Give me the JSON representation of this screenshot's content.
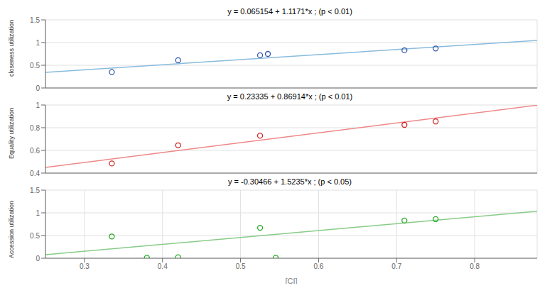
{
  "chart_data": [
    {
      "type": "scatter",
      "title": "y = 0.065154 + 1.1171*x ; (p < 0.01)",
      "y_label": "closeness utilization",
      "xlim": [
        0.25,
        0.88
      ],
      "xticks": [
        0.3,
        0.4,
        0.5,
        0.6,
        0.7,
        0.8
      ],
      "ylim": [
        0,
        1.5
      ],
      "yticks": [
        0,
        0.5,
        1,
        1.5
      ],
      "grid": true,
      "tick_labels": "y",
      "series": [
        {
          "type": "line",
          "color": "#88BBDD",
          "x": [
            0.25,
            0.88
          ],
          "values": [
            0.344429,
            1.048202
          ]
        },
        {
          "type": "scatter",
          "color": "#3355AA",
          "marker": "circle",
          "x": [
            0.335,
            0.42,
            0.525,
            0.535,
            0.71,
            0.75
          ],
          "values": [
            0.35,
            0.61,
            0.72,
            0.75,
            0.83,
            0.87
          ]
        }
      ]
    },
    {
      "type": "scatter",
      "title": "y = 0.23335 + 0.86914*x ; (p < 0.01)",
      "y_label": "Equality utilization",
      "xlim": [
        0.25,
        0.88
      ],
      "xticks": [
        0.3,
        0.4,
        0.5,
        0.6,
        0.7,
        0.8
      ],
      "ylim": [
        0.4,
        1
      ],
      "yticks": [
        0.4,
        0.6,
        0.8,
        1
      ],
      "grid": true,
      "tick_labels": "y",
      "series": [
        {
          "type": "line",
          "color": "#EE8888",
          "x": [
            0.25,
            0.88
          ],
          "values": [
            0.450635,
            0.9981932
          ]
        },
        {
          "type": "scatter",
          "color": "#CC2222",
          "marker": "circle",
          "x": [
            0.335,
            0.42,
            0.525,
            0.71,
            0.75
          ],
          "values": [
            0.485,
            0.645,
            0.73,
            0.825,
            0.855
          ]
        }
      ]
    },
    {
      "type": "scatter",
      "title": "y = -0.30466 + 1.5235*x ; (p < 0.05)",
      "y_label": "Accession utilization",
      "x_label": "[CI]",
      "xlim": [
        0.25,
        0.88
      ],
      "xticks": [
        0.3,
        0.4,
        0.5,
        0.6,
        0.7,
        0.8
      ],
      "ylim": [
        0,
        1.5
      ],
      "yticks": [
        0,
        0.5,
        1,
        1.5
      ],
      "grid": true,
      "series": [
        {
          "type": "line",
          "color": "#88CC88",
          "x": [
            0.25,
            0.88
          ],
          "values": [
            0.076215,
            1.03602
          ]
        },
        {
          "type": "scatter",
          "color": "#22AA22",
          "marker": "circle",
          "x": [
            0.335,
            0.38,
            0.42,
            0.525,
            0.545,
            0.71,
            0.75
          ],
          "values": [
            0.48,
            0.01,
            0.02,
            0.67,
            0.01,
            0.83,
            0.86
          ]
        }
      ]
    }
  ]
}
